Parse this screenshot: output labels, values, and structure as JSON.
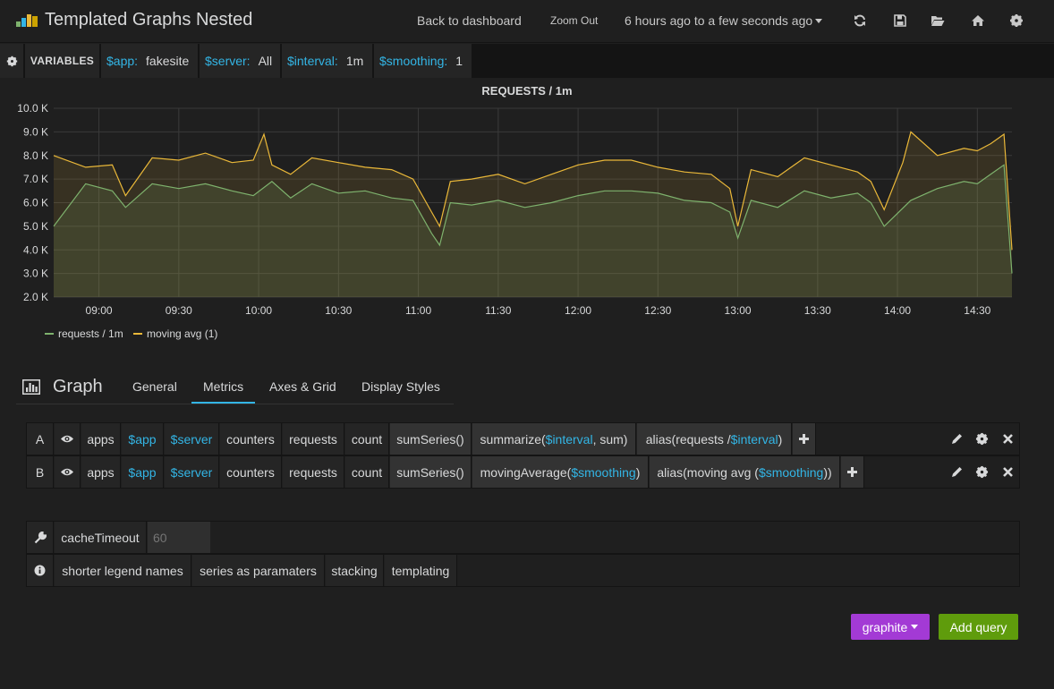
{
  "app": {
    "title": "Templated Graphs Nested"
  },
  "nav": {
    "back_to_dashboard": "Back to dashboard",
    "zoom_out": "Zoom Out",
    "time_range": "6 hours ago to a few seconds ago",
    "icons": [
      "refresh-icon",
      "save-icon",
      "folder-open-icon",
      "home-icon",
      "gear-icon"
    ]
  },
  "variables": {
    "label": "VARIABLES",
    "items": [
      {
        "key": "$app:",
        "value": "fakesite"
      },
      {
        "key": "$server:",
        "value": "All"
      },
      {
        "key": "$interval:",
        "value": "1m"
      },
      {
        "key": "$smoothing:",
        "value": "1"
      }
    ]
  },
  "panel": {
    "title": "REQUESTS / 1m"
  },
  "chart_data": {
    "type": "line",
    "title": "REQUESTS / 1m",
    "y_ticks": [
      "10.0 K",
      "9.0 K",
      "8.0 K",
      "7.0 K",
      "6.0 K",
      "5.0 K",
      "4.0 K",
      "3.0 K",
      "2.0 K"
    ],
    "x_ticks": [
      "09:00",
      "09:30",
      "10:00",
      "10:30",
      "11:00",
      "11:30",
      "12:00",
      "12:30",
      "13:00",
      "13:30",
      "14:00",
      "14:30"
    ],
    "ylim": [
      2000,
      10000
    ],
    "xlim": [
      "08:43",
      "14:43"
    ],
    "grid": true,
    "legend_position": "bottom-left",
    "series": [
      {
        "name": "requests / 1m",
        "color": "#7eb26d",
        "x": [
          "08:43",
          "08:55",
          "09:05",
          "09:10",
          "09:20",
          "09:30",
          "09:40",
          "09:50",
          "09:58",
          "10:05",
          "10:12",
          "10:20",
          "10:30",
          "10:40",
          "10:50",
          "10:58",
          "11:05",
          "11:08",
          "11:12",
          "11:20",
          "11:30",
          "11:40",
          "11:50",
          "12:00",
          "12:10",
          "12:20",
          "12:30",
          "12:40",
          "12:50",
          "12:57",
          "13:00",
          "13:05",
          "13:15",
          "13:25",
          "13:35",
          "13:45",
          "13:50",
          "13:55",
          "14:05",
          "14:15",
          "14:25",
          "14:30",
          "14:35",
          "14:40",
          "14:43"
        ],
        "values": [
          5000,
          6800,
          6500,
          5800,
          6800,
          6600,
          6800,
          6500,
          6300,
          6900,
          6200,
          6800,
          6400,
          6500,
          6200,
          6100,
          4700,
          4200,
          6000,
          5900,
          6100,
          5800,
          6000,
          6300,
          6500,
          6500,
          6400,
          6100,
          6000,
          5600,
          4500,
          6100,
          5800,
          6500,
          6200,
          6400,
          6000,
          5000,
          6100,
          6600,
          6900,
          6800,
          7200,
          7600,
          3000
        ]
      },
      {
        "name": "moving avg (1)",
        "color": "#eab839",
        "x": [
          "08:43",
          "08:55",
          "09:05",
          "09:10",
          "09:20",
          "09:30",
          "09:40",
          "09:50",
          "09:58",
          "10:02",
          "10:05",
          "10:12",
          "10:20",
          "10:30",
          "10:40",
          "10:50",
          "10:58",
          "11:05",
          "11:08",
          "11:12",
          "11:20",
          "11:30",
          "11:40",
          "11:50",
          "12:00",
          "12:10",
          "12:20",
          "12:30",
          "12:40",
          "12:50",
          "12:57",
          "13:00",
          "13:05",
          "13:15",
          "13:25",
          "13:35",
          "13:45",
          "13:50",
          "13:55",
          "14:02",
          "14:05",
          "14:15",
          "14:25",
          "14:30",
          "14:35",
          "14:40",
          "14:43"
        ],
        "values": [
          8000,
          7500,
          7600,
          6300,
          7900,
          7800,
          8100,
          7700,
          7800,
          8900,
          7600,
          7200,
          7900,
          7700,
          7500,
          7400,
          7000,
          5600,
          5000,
          6900,
          7000,
          7200,
          6800,
          7200,
          7600,
          7800,
          7800,
          7500,
          7300,
          7200,
          6600,
          5000,
          7400,
          7100,
          7900,
          7600,
          7300,
          6900,
          5700,
          7700,
          9000,
          8000,
          8300,
          8200,
          8500,
          8900,
          4000
        ]
      }
    ]
  },
  "editor": {
    "title": "Graph",
    "tabs": [
      "General",
      "Metrics",
      "Axes & Grid",
      "Display Styles"
    ],
    "active_tab": "Metrics"
  },
  "queries": [
    {
      "letter": "A",
      "segments": [
        "apps",
        "$app",
        "$server",
        "counters",
        "requests",
        "count"
      ],
      "fn1": "sumSeries()",
      "fn2_pre": "summarize(",
      "fn2_var": "$interval",
      "fn2_post": ", sum)",
      "fn3_pre": "alias(requests / ",
      "fn3_var": "$interval",
      "fn3_post": ")"
    },
    {
      "letter": "B",
      "segments": [
        "apps",
        "$app",
        "$server",
        "counters",
        "requests",
        "count"
      ],
      "fn1": "sumSeries()",
      "fn2_pre": "movingAverage(",
      "fn2_var": "$smoothing",
      "fn2_post": ")",
      "fn3_pre": "alias(moving avg (",
      "fn3_var": "$smoothing",
      "fn3_post": "))"
    }
  ],
  "options": {
    "cache_timeout_label": "cacheTimeout",
    "cache_timeout_placeholder": "60",
    "help_links": [
      "shorter legend names",
      "series as paramaters",
      "stacking",
      "templating"
    ]
  },
  "buttons": {
    "datasource": "graphite",
    "add_query": "Add query"
  }
}
